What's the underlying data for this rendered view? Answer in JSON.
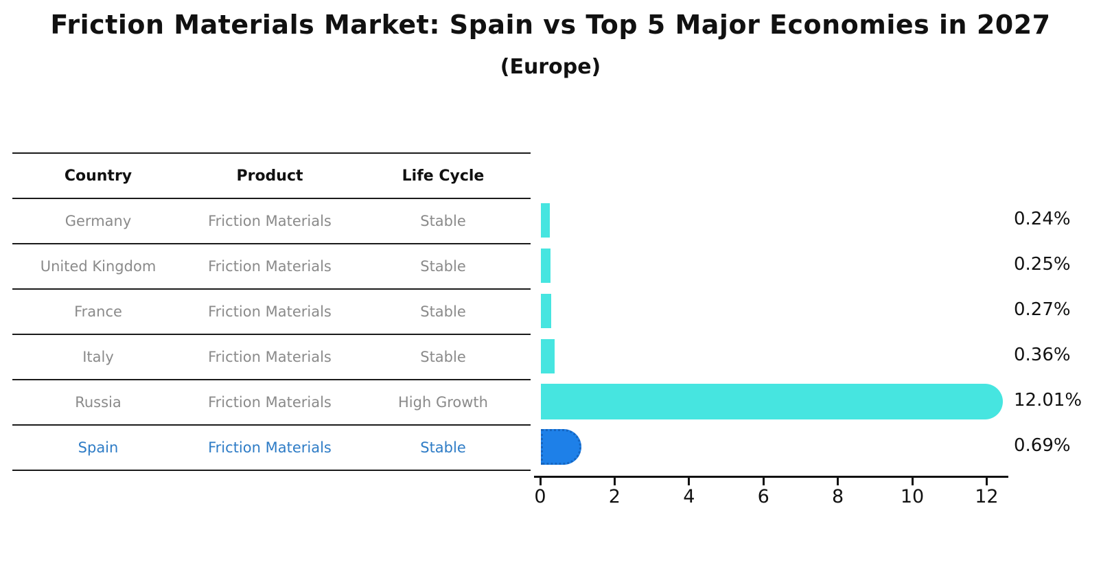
{
  "title": "Friction Materials Market: Spain vs Top 5 Major Economies in 2027",
  "subtitle": "(Europe)",
  "table": {
    "headers": [
      "Country",
      "Product",
      "Life Cycle"
    ],
    "rows": [
      {
        "country": "Germany",
        "product": "Friction Materials",
        "life_cycle": "Stable",
        "highlighted": false
      },
      {
        "country": "United Kingdom",
        "product": "Friction Materials",
        "life_cycle": "Stable",
        "highlighted": false
      },
      {
        "country": "France",
        "product": "Friction Materials",
        "life_cycle": "Stable",
        "highlighted": false
      },
      {
        "country": "Italy",
        "product": "Friction Materials",
        "life_cycle": "Stable",
        "highlighted": false
      },
      {
        "country": "Russia",
        "product": "Friction Materials",
        "life_cycle": "High Growth",
        "highlighted": false
      },
      {
        "country": "Spain",
        "product": "Friction Materials",
        "life_cycle": "Stable",
        "highlighted": true
      }
    ]
  },
  "chart_data": {
    "type": "bar",
    "orientation": "horizontal",
    "title": "Friction Materials Market: Spain vs Top 5 Major Economies in 2027",
    "subtitle": "(Europe)",
    "categories": [
      "Germany",
      "United Kingdom",
      "France",
      "Italy",
      "Russia",
      "Spain"
    ],
    "values": [
      0.24,
      0.25,
      0.27,
      0.36,
      12.01,
      0.69
    ],
    "value_labels": [
      "0.24%",
      "0.25%",
      "0.27%",
      "0.36%",
      "12.01%",
      "0.69%"
    ],
    "x_ticks": [
      0,
      2,
      4,
      6,
      8,
      10,
      12
    ],
    "xlim": [
      0,
      12.6
    ],
    "grid": false,
    "legend": "none",
    "bar_color": "#46e5e0",
    "highlight_color": "#1e80e8",
    "highlight_border_color": "#1565c0",
    "highlight_index": 5,
    "rounded_indices": [
      4,
      5
    ]
  },
  "colors": {
    "table_text": "#8a8a8a",
    "highlight_text": "#2e7cc6",
    "title_text": "#111111",
    "rule_lines": "#1a1a1a"
  }
}
